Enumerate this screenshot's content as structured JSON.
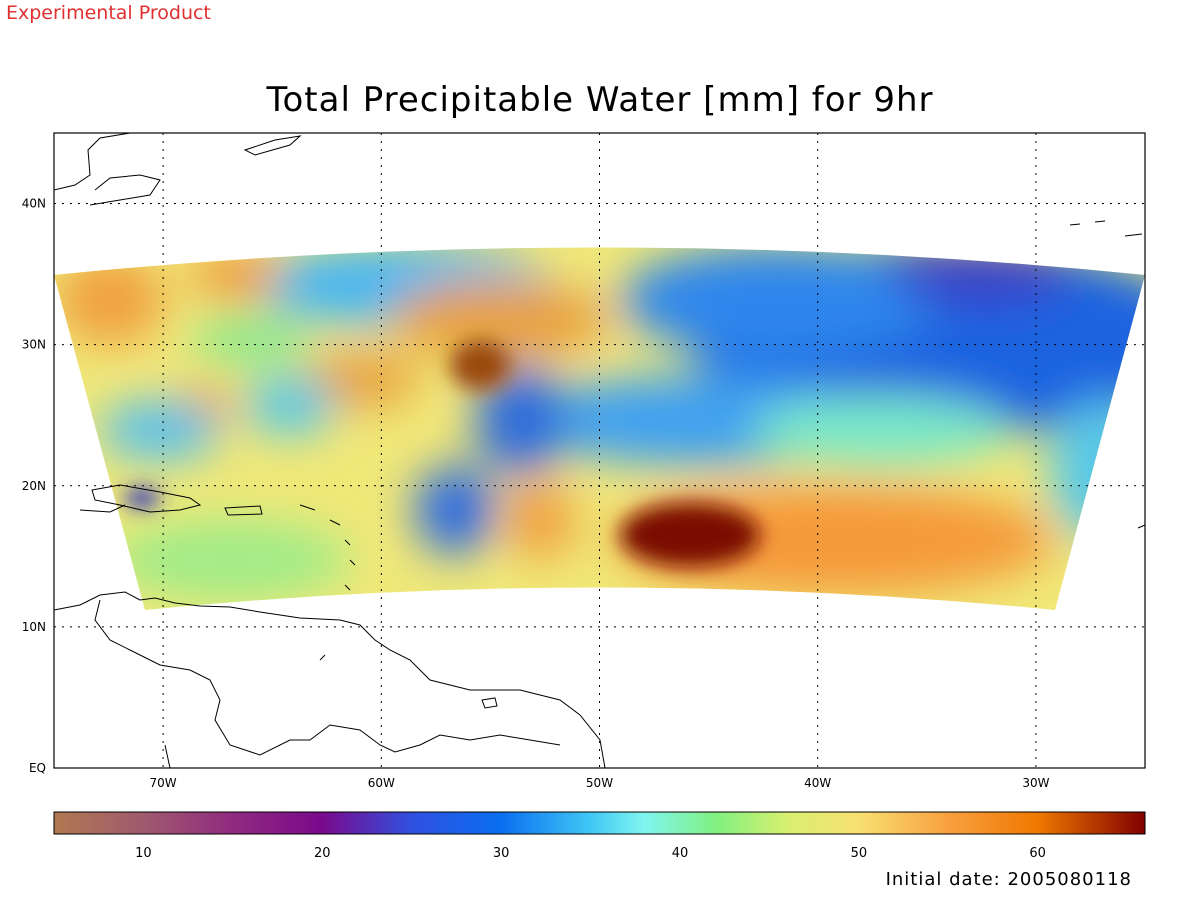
{
  "banner": "Experimental Product",
  "title": "Total Precipitable Water [mm] for 9hr",
  "initial_date": "Initial date: 2005080118",
  "map": {
    "lon_range": [
      -75,
      -25
    ],
    "lat_range": [
      0,
      45
    ],
    "lon_ticks": [
      {
        "lon": -70,
        "label": "70W"
      },
      {
        "lon": -60,
        "label": "60W"
      },
      {
        "lon": -50,
        "label": "50W"
      },
      {
        "lon": -40,
        "label": "40W"
      },
      {
        "lon": -30,
        "label": "30W"
      }
    ],
    "lat_ticks": [
      {
        "lat": 40,
        "label": "40N"
      },
      {
        "lat": 30,
        "label": "30N"
      },
      {
        "lat": 20,
        "label": "20N"
      },
      {
        "lat": 10,
        "label": "10N"
      },
      {
        "lat": 0,
        "label": "EQ"
      }
    ],
    "grid": "dotted"
  },
  "colorbar": {
    "range": [
      5,
      66
    ],
    "ticks": [
      {
        "value": 10,
        "label": "10"
      },
      {
        "value": 20,
        "label": "20"
      },
      {
        "value": 30,
        "label": "30"
      },
      {
        "value": 40,
        "label": "40"
      },
      {
        "value": 50,
        "label": "50"
      },
      {
        "value": 60,
        "label": "60"
      }
    ],
    "stops": [
      {
        "v": 5,
        "color": "#b07850"
      },
      {
        "v": 10,
        "color": "#a05a6e"
      },
      {
        "v": 15,
        "color": "#902a80"
      },
      {
        "v": 20,
        "color": "#7a0a8c"
      },
      {
        "v": 25,
        "color": "#3050e0"
      },
      {
        "v": 30,
        "color": "#0a6ff0"
      },
      {
        "v": 35,
        "color": "#40c8f5"
      },
      {
        "v": 38,
        "color": "#80f5f0"
      },
      {
        "v": 42,
        "color": "#80f080"
      },
      {
        "v": 46,
        "color": "#d8f070"
      },
      {
        "v": 50,
        "color": "#f8e070"
      },
      {
        "v": 55,
        "color": "#f8a040"
      },
      {
        "v": 60,
        "color": "#f07800"
      },
      {
        "v": 66,
        "color": "#800000"
      }
    ]
  }
}
